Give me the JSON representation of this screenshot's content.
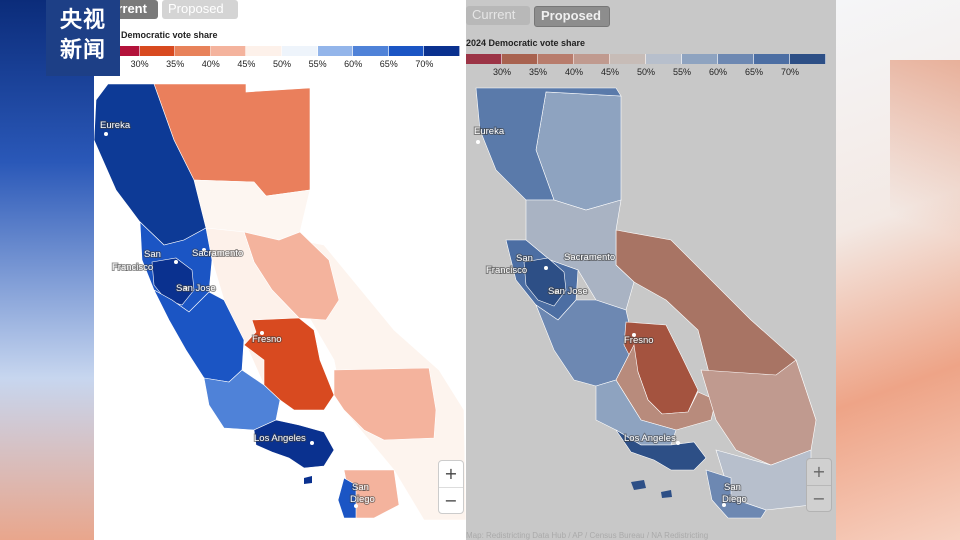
{
  "broadcaster_logo": {
    "line1": "央视",
    "line2": "新闻"
  },
  "left_panel": {
    "tabs": {
      "current": "Current",
      "proposed": "Proposed"
    },
    "legend_title": "Democratic vote share",
    "legend_ticks": [
      "30%",
      "35%",
      "40%",
      "45%",
      "50%",
      "55%",
      "60%",
      "65%",
      "70%"
    ],
    "legend_colors": [
      "#b3123a",
      "#d84a20",
      "#e8825a",
      "#f4b39d",
      "#fdf1ea",
      "#eef4fb",
      "#93b5ea",
      "#4f82d8",
      "#1b55c4",
      "#0a318f"
    ]
  },
  "right_panel": {
    "tabs": {
      "current": "Current",
      "proposed": "Proposed"
    },
    "legend_title": "2024 Democratic vote share",
    "legend_ticks": [
      "30%",
      "35%",
      "40%",
      "45%",
      "50%",
      "55%",
      "60%",
      "65%",
      "70%"
    ],
    "legend_colors": [
      "#9c3446",
      "#a8624f",
      "#b87c6c",
      "#c09a8f",
      "#c7bcb7",
      "#b7bfcc",
      "#8ea3c0",
      "#6d88b2",
      "#4c6ea3",
      "#2d4f86"
    ],
    "footer": "Map: Redistricting Data Hub / AP / Census Bureau / NA Redistricting"
  },
  "cities": [
    {
      "name": "Eureka",
      "line2": ""
    },
    {
      "name": "San",
      "line2": "Francisco"
    },
    {
      "name": "Sacramento",
      "line2": ""
    },
    {
      "name": "San Jose",
      "line2": ""
    },
    {
      "name": "Fresno",
      "line2": ""
    },
    {
      "name": "Los Angeles",
      "line2": ""
    },
    {
      "name": "San",
      "line2": "Diego"
    }
  ],
  "zoom": {
    "in": "+",
    "out": "−"
  },
  "map_fills_left": {
    "north_coast": "#0d3a96",
    "north_interior": "#ea7f5c",
    "shasta_band": "#fdf6f1",
    "bay_outer": "#1b55c4",
    "bay_inner": "#0a318f",
    "central_coast": "#1b55c4",
    "sierra": "#f4b39d",
    "central_valley": "#fdf1ea",
    "fresno_core": "#d84a20",
    "eastern_desert": "#fdf4ee",
    "inland_empire": "#f4b39d",
    "ventura": "#4f82d8",
    "la_core": "#0a318f",
    "orange_county": "#f4b39d",
    "san_diego": "#1b55c4"
  },
  "map_fills_right": {
    "north_coast": "#5a7aaa",
    "north_interior": "#8ea3c0",
    "central_north": "#a9b3c3",
    "bay_inner": "#2d4f86",
    "bay_outer": "#4c6ea3",
    "central_coast": "#6d88b2",
    "eastern_sierra": "#a87464",
    "fresno_core": "#a4533f",
    "central_valley_south": "#b88b7c",
    "inland_south": "#c09a8f",
    "la_core": "#2d4f86",
    "southern_coast": "#8ea3c0",
    "desert_south": "#b7bfcc",
    "san_diego": "#6d88b2"
  }
}
